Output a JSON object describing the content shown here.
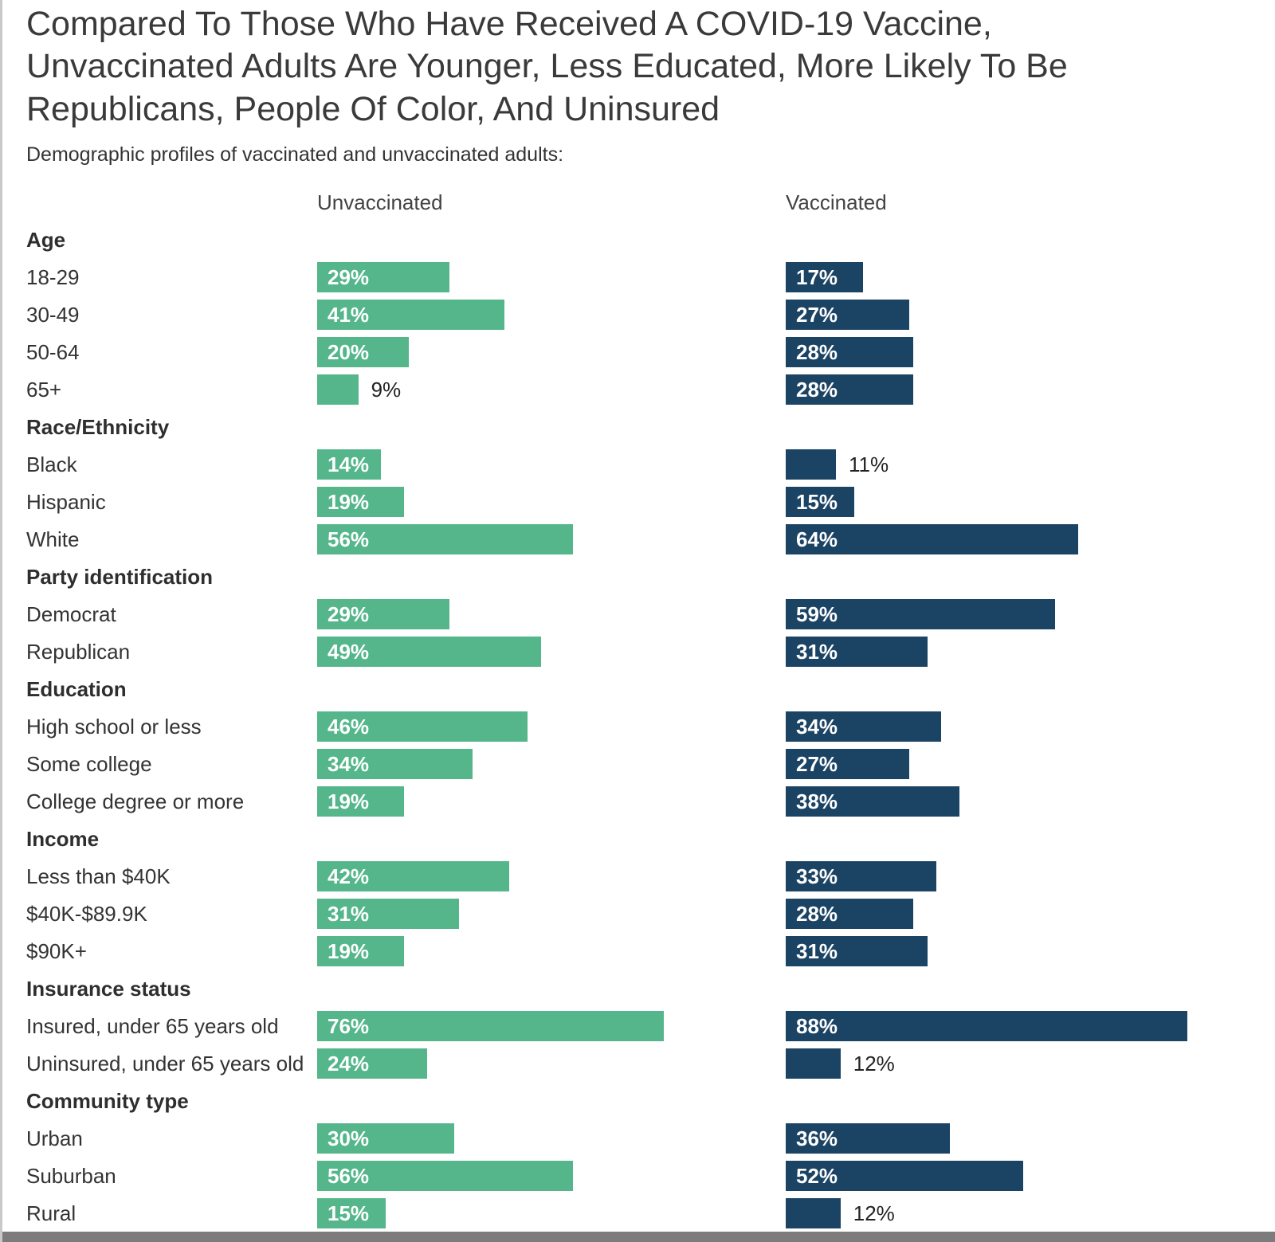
{
  "title": "Compared To Those Who Have Received A COVID-19 Vaccine, Unvaccinated Adults Are Younger, Less Educated, More Likely To Be Republicans, People Of Color, And Uninsured",
  "subtitle": "Demographic profiles of vaccinated and unvaccinated adults:",
  "columns": {
    "unvaccinated": "Unvaccinated",
    "vaccinated": "Vaccinated"
  },
  "colors": {
    "unvaccinated": "#54B68A",
    "vaccinated": "#1B4364",
    "inside_label": "#FFFFFF",
    "outside_label": "#222222"
  },
  "value_suffix": "%",
  "chart_data": {
    "type": "bar",
    "orientation": "horizontal",
    "title": "Compared To Those Who Have Received A COVID-19 Vaccine, Unvaccinated Adults Are Younger, Less Educated, More Likely To Be Republicans, People Of Color, And Uninsured",
    "subtitle": "Demographic profiles of vaccinated and unvaccinated adults:",
    "xlim": [
      0,
      100
    ],
    "grid": false,
    "legend_position": "column-headers",
    "series_names": [
      "Unvaccinated",
      "Vaccinated"
    ],
    "groups": [
      {
        "label": "Age",
        "rows": [
          {
            "label": "18-29",
            "unvaccinated": 29,
            "vaccinated": 17
          },
          {
            "label": "30-49",
            "unvaccinated": 41,
            "vaccinated": 27
          },
          {
            "label": "50-64",
            "unvaccinated": 20,
            "vaccinated": 28
          },
          {
            "label": "65+",
            "unvaccinated": 9,
            "vaccinated": 28
          }
        ]
      },
      {
        "label": "Race/Ethnicity",
        "rows": [
          {
            "label": "Black",
            "unvaccinated": 14,
            "vaccinated": 11
          },
          {
            "label": "Hispanic",
            "unvaccinated": 19,
            "vaccinated": 15
          },
          {
            "label": "White",
            "unvaccinated": 56,
            "vaccinated": 64
          }
        ]
      },
      {
        "label": "Party identification",
        "rows": [
          {
            "label": "Democrat",
            "unvaccinated": 29,
            "vaccinated": 59
          },
          {
            "label": "Republican",
            "unvaccinated": 49,
            "vaccinated": 31
          }
        ]
      },
      {
        "label": "Education",
        "rows": [
          {
            "label": "High school or less",
            "unvaccinated": 46,
            "vaccinated": 34
          },
          {
            "label": "Some college",
            "unvaccinated": 34,
            "vaccinated": 27
          },
          {
            "label": "College degree or more",
            "unvaccinated": 19,
            "vaccinated": 38
          }
        ]
      },
      {
        "label": "Income",
        "rows": [
          {
            "label": "Less than $40K",
            "unvaccinated": 42,
            "vaccinated": 33
          },
          {
            "label": "$40K-$89.9K",
            "unvaccinated": 31,
            "vaccinated": 28
          },
          {
            "label": "$90K+",
            "unvaccinated": 19,
            "vaccinated": 31
          }
        ]
      },
      {
        "label": "Insurance status",
        "rows": [
          {
            "label": "Insured, under 65 years old",
            "unvaccinated": 76,
            "vaccinated": 88
          },
          {
            "label": "Uninsured, under 65 years old",
            "unvaccinated": 24,
            "vaccinated": 12
          }
        ]
      },
      {
        "label": "Community type",
        "rows": [
          {
            "label": "Urban",
            "unvaccinated": 30,
            "vaccinated": 36
          },
          {
            "label": "Suburban",
            "unvaccinated": 56,
            "vaccinated": 52
          },
          {
            "label": "Rural",
            "unvaccinated": 15,
            "vaccinated": 12
          }
        ]
      }
    ]
  }
}
